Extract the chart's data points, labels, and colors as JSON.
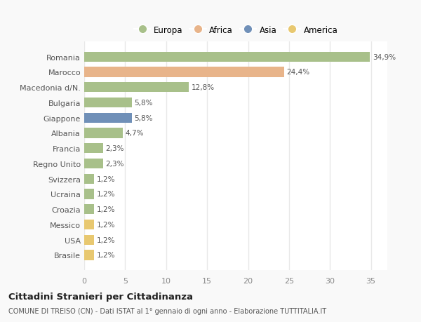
{
  "countries": [
    "Romania",
    "Marocco",
    "Macedonia d/N.",
    "Bulgaria",
    "Giappone",
    "Albania",
    "Francia",
    "Regno Unito",
    "Svizzera",
    "Ucraina",
    "Croazia",
    "Messico",
    "USA",
    "Brasile"
  ],
  "values": [
    34.9,
    24.4,
    12.8,
    5.8,
    5.8,
    4.7,
    2.3,
    2.3,
    1.2,
    1.2,
    1.2,
    1.2,
    1.2,
    1.2
  ],
  "labels": [
    "34,9%",
    "24,4%",
    "12,8%",
    "5,8%",
    "5,8%",
    "4,7%",
    "2,3%",
    "2,3%",
    "1,2%",
    "1,2%",
    "1,2%",
    "1,2%",
    "1,2%",
    "1,2%"
  ],
  "colors": [
    "#a8c08a",
    "#e8b48a",
    "#a8c08a",
    "#a8c08a",
    "#7090b8",
    "#a8c08a",
    "#a8c08a",
    "#a8c08a",
    "#a8c08a",
    "#a8c08a",
    "#a8c08a",
    "#e8c870",
    "#e8c870",
    "#e8c870"
  ],
  "legend": [
    {
      "label": "Europa",
      "color": "#a8c08a"
    },
    {
      "label": "Africa",
      "color": "#e8b48a"
    },
    {
      "label": "Asia",
      "color": "#7090b8"
    },
    {
      "label": "America",
      "color": "#e8c870"
    }
  ],
  "title": "Cittadini Stranieri per Cittadinanza",
  "subtitle": "COMUNE DI TREISO (CN) - Dati ISTAT al 1° gennaio di ogni anno - Elaborazione TUTTITALIA.IT",
  "xlim": [
    0,
    37
  ],
  "xticks": [
    0,
    5,
    10,
    15,
    20,
    25,
    30,
    35
  ],
  "background_color": "#f9f9f9",
  "plot_bg_color": "#ffffff",
  "grid_color": "#e8e8e8"
}
